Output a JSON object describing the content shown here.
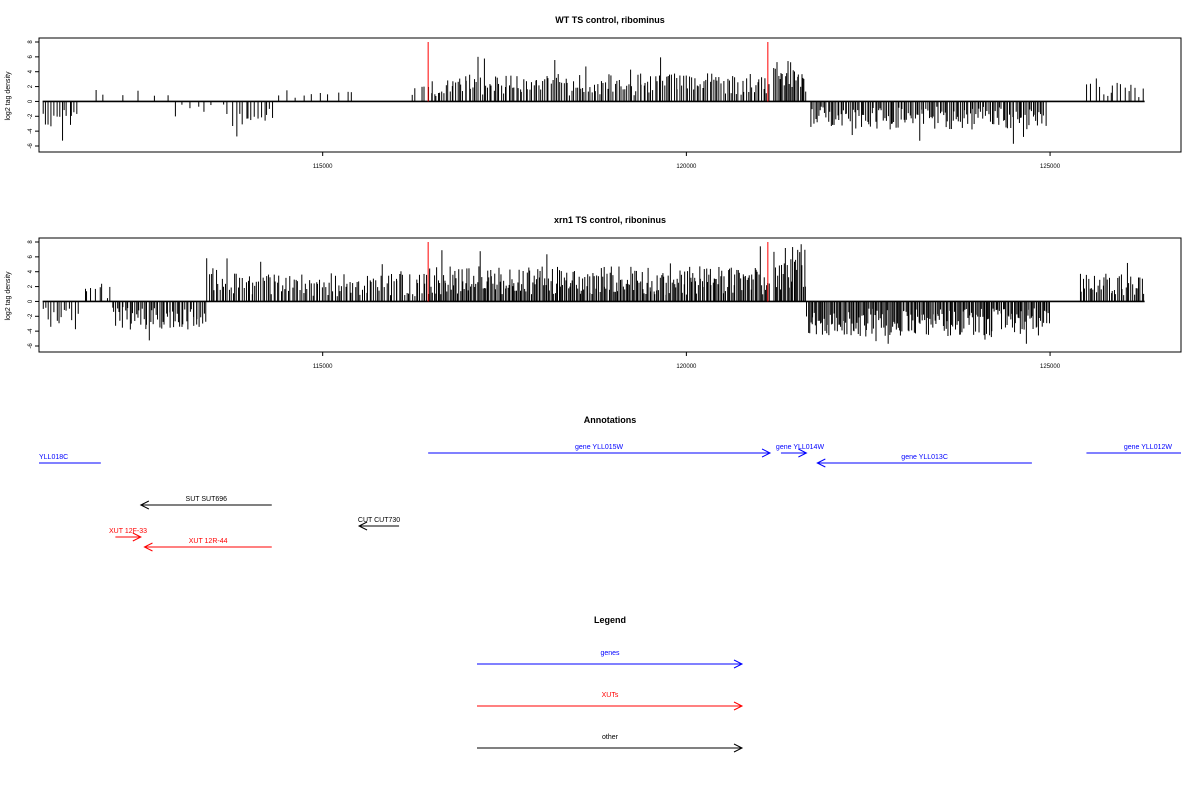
{
  "chart_data": [
    {
      "type": "bar",
      "title": "WT TS control, ribominus",
      "ylabel": "log2 tag density",
      "xlim": [
        111100,
        126800
      ],
      "ylim": [
        -6,
        8
      ],
      "x_ticks": [
        115000,
        120000,
        125000
      ],
      "y_ticks": [
        -6,
        -4,
        -2,
        0,
        2,
        4,
        6,
        8
      ],
      "grid": false,
      "track_end": 126300,
      "markers": [
        {
          "x": 116450,
          "y": 8,
          "color": "#ff0000"
        },
        {
          "x": 121120,
          "y": 8,
          "color": "#ff0000"
        }
      ],
      "segments": [
        {
          "start": 111150,
          "end": 111650,
          "level": -3,
          "n": 14
        },
        {
          "start": 111750,
          "end": 112950,
          "level": 1.2,
          "n": 6
        },
        {
          "start": 112950,
          "end": 113750,
          "level": -1.5,
          "n": 8
        },
        {
          "start": 113750,
          "end": 114350,
          "level": -2.5,
          "n": 14
        },
        {
          "start": 114350,
          "end": 115500,
          "level": 1.2,
          "n": 10
        },
        {
          "start": 116200,
          "end": 116450,
          "level": 1.5,
          "n": 4
        },
        {
          "start": 116450,
          "end": 121150,
          "level": 2.8,
          "n": 180
        },
        {
          "start": 121200,
          "end": 121650,
          "level": 4.5,
          "n": 24
        },
        {
          "start": 121700,
          "end": 124950,
          "level": -2.8,
          "n": 150
        },
        {
          "start": 125500,
          "end": 126300,
          "level": 2.2,
          "n": 16
        }
      ]
    },
    {
      "type": "bar",
      "title": "xrn1 TS control, riboninus",
      "ylabel": "log2 tag density",
      "xlim": [
        111100,
        126800
      ],
      "ylim": [
        -6,
        8
      ],
      "x_ticks": [
        115000,
        120000,
        125000
      ],
      "y_ticks": [
        -6,
        -4,
        -2,
        0,
        2,
        4,
        6,
        8
      ],
      "grid": false,
      "track_end": 126300,
      "markers": [
        {
          "x": 116450,
          "y": 8,
          "color": "#ff0000"
        },
        {
          "x": 121120,
          "y": 8,
          "color": "#ff0000"
        }
      ],
      "segments": [
        {
          "start": 111150,
          "end": 111650,
          "level": -3,
          "n": 14
        },
        {
          "start": 111700,
          "end": 112100,
          "level": 1.5,
          "n": 8
        },
        {
          "start": 112100,
          "end": 113400,
          "level": -2.8,
          "n": 60
        },
        {
          "start": 113400,
          "end": 116450,
          "level": 2.8,
          "n": 120
        },
        {
          "start": 116450,
          "end": 121150,
          "level": 3.5,
          "n": 260
        },
        {
          "start": 121200,
          "end": 121650,
          "level": 5.5,
          "n": 26
        },
        {
          "start": 121650,
          "end": 125000,
          "level": -3.5,
          "n": 200
        },
        {
          "start": 125400,
          "end": 126300,
          "level": 2.8,
          "n": 40
        }
      ]
    },
    {
      "type": "annotation",
      "title": "Annotations",
      "xlim": [
        111100,
        126800
      ],
      "items": [
        {
          "label": "YLL018C",
          "start": 111100,
          "end": 111950,
          "strand": "-",
          "row": 1,
          "color": "#0000ff"
        },
        {
          "label": "gene YLL015W",
          "start": 116450,
          "end": 121150,
          "strand": "+",
          "row": 0,
          "color": "#0000ff"
        },
        {
          "label": "gene YLL014W",
          "start": 121300,
          "end": 121650,
          "strand": "+",
          "row": 0,
          "color": "#0000ff"
        },
        {
          "label": "gene YLL013C",
          "start": 121800,
          "end": 124750,
          "strand": "-",
          "row": 1,
          "color": "#0000ff"
        },
        {
          "label": "gene YLL012W",
          "start": 125500,
          "end": 126800,
          "strand": "+",
          "row": 0,
          "color": "#0000ff"
        },
        {
          "label": "SUT SUT696",
          "start": 112500,
          "end": 114300,
          "strand": "-",
          "row": 0,
          "color": "#000000"
        },
        {
          "label": "CUT CUT730",
          "start": 115500,
          "end": 116050,
          "strand": "-",
          "row": 0,
          "color": "#000000"
        },
        {
          "label": "XUT 12F-33",
          "start": 112150,
          "end": 112500,
          "strand": "+",
          "row": 0,
          "color": "#ff0000"
        },
        {
          "label": "XUT 12R-44",
          "start": 112550,
          "end": 114300,
          "strand": "-",
          "row": 0,
          "color": "#ff0000"
        }
      ]
    }
  ],
  "legend": {
    "title": "Legend",
    "items": [
      {
        "label": "genes",
        "color": "#0000ff"
      },
      {
        "label": "XUTs",
        "color": "#ff0000"
      },
      {
        "label": "other",
        "color": "#000000"
      }
    ]
  }
}
